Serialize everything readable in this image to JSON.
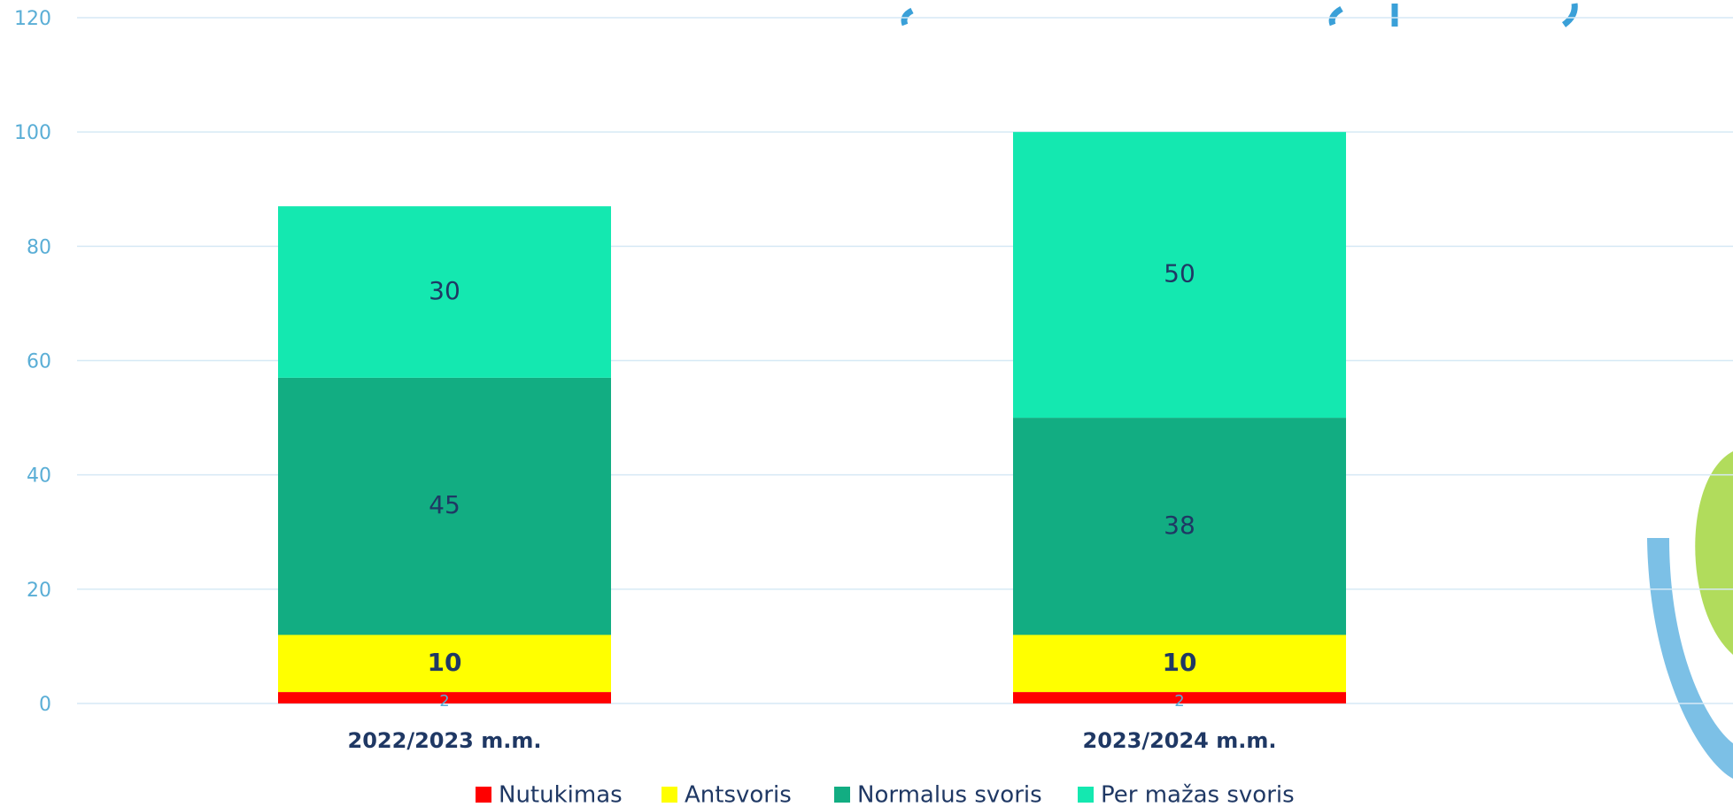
{
  "chart_data": {
    "type": "stacked_bar",
    "categories": [
      "2022/2023 m.m.",
      "2023/2024 m.m."
    ],
    "series": [
      {
        "name": "Nutukimas",
        "color": "#ff0000",
        "values": [
          2,
          2
        ]
      },
      {
        "name": "Antsvoris",
        "color": "#ffff00",
        "values": [
          10,
          10
        ]
      },
      {
        "name": "Normalus svoris",
        "color": "#12ad82",
        "values": [
          45,
          38
        ]
      },
      {
        "name": "Per mažas svoris",
        "color": "#14e8b0",
        "values": [
          30,
          50
        ]
      }
    ],
    "ylim": [
      0,
      120
    ],
    "yticks": [
      0,
      20,
      40,
      60,
      80,
      100,
      120
    ],
    "grid": true,
    "legend": "bottom"
  }
}
